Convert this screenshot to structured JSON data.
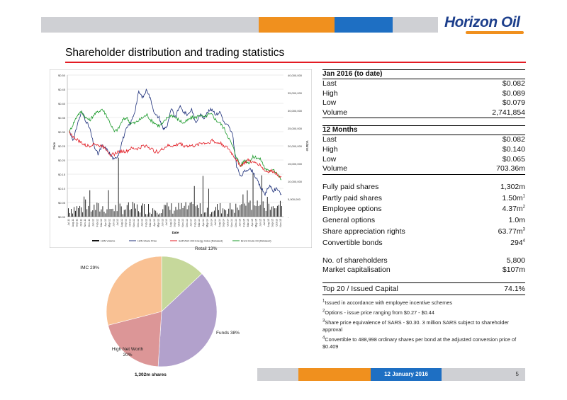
{
  "header": {
    "logo_text": "Horizon Oil",
    "colors": {
      "grey": "#cfd0d4",
      "orange": "#f0901e",
      "blue": "#1e6fc3",
      "red": "#e31b23",
      "navy": "#1d3f8c"
    }
  },
  "page": {
    "title": "Shareholder distribution and trading statistics",
    "date": "12 January 2016",
    "page_number": "5"
  },
  "stats": {
    "jan2016": {
      "heading": "Jan 2016 (to date)",
      "rows": [
        {
          "label": "Last",
          "value": "$0.082"
        },
        {
          "label": "High",
          "value": "$0.089"
        },
        {
          "label": "Low",
          "value": "$0.079"
        },
        {
          "label": "Volume",
          "value": "2,741,854"
        }
      ]
    },
    "months12": {
      "heading": "12 Months",
      "rows": [
        {
          "label": "Last",
          "value": "$0.082"
        },
        {
          "label": "High",
          "value": "$0.140"
        },
        {
          "label": "Low",
          "value": "$0.065"
        },
        {
          "label": "Volume",
          "value": "703.36m"
        }
      ]
    },
    "capital": [
      {
        "label": "Fully paid shares",
        "value": "1,302m",
        "sup": ""
      },
      {
        "label": "Partly paid shares",
        "value": "1.50m",
        "sup": "1"
      },
      {
        "label": "Employee options",
        "value": "4.37m",
        "sup": "2"
      },
      {
        "label": "General options",
        "value": "1.0m",
        "sup": ""
      },
      {
        "label": "Share appreciation rights",
        "value": "63.77m",
        "sup": "3"
      },
      {
        "label": "Convertible bonds",
        "value": "294",
        "sup": "4"
      }
    ],
    "holders": [
      {
        "label": "No. of shareholders",
        "value": "5,800"
      },
      {
        "label": "Market capitalisation",
        "value": "$107m"
      }
    ],
    "top20": {
      "label": "Top 20 / Issued Capital",
      "value": "74.1%"
    },
    "footnotes": [
      {
        "sup": "1",
        "text": "Issued in accordance with employee incentive schemes"
      },
      {
        "sup": "2",
        "text": "Options - issue price ranging from $0.27 - $0.44"
      },
      {
        "sup": "3",
        "text": "Share price equivalence of SARS - $0.30. 3 million SARS subject to shareholder approval"
      },
      {
        "sup": "4",
        "text": "Convertible to 488,998 ordinary shares per bond at the adjusted conversion price of $0.409"
      }
    ]
  },
  "chart_data": [
    {
      "type": "line",
      "y_left_label": "Price",
      "y_right_label": "Volume",
      "x_label": "Date",
      "y_left_ticks": [
        "$0.50",
        "$0.45",
        "$0.40",
        "$0.35",
        "$0.30",
        "$0.25",
        "$0.20",
        "$0.15",
        "$0.10",
        "$0.05",
        "$0.00"
      ],
      "y_right_ticks": [
        "40,000,000",
        "35,000,000",
        "30,000,000",
        "25,000,000",
        "20,000,000",
        "15,000,000",
        "10,000,000",
        "5,000,000",
        "-"
      ],
      "ylim": [
        0,
        0.5
      ],
      "x_ticks": [
        "Jul-11",
        "Aug-11",
        "Sep-11",
        "Oct-11",
        "Nov-11",
        "Dec-11",
        "Jan-12",
        "Feb-12",
        "Mar-12",
        "Apr-12",
        "May-12",
        "Jun-12",
        "Jul-12",
        "Aug-12",
        "Sep-12",
        "Oct-12",
        "Nov-12",
        "Dec-12",
        "Jan-13",
        "Feb-13",
        "Mar-13",
        "Apr-13",
        "May-13",
        "Jun-13",
        "Jul-13",
        "Aug-13",
        "Sep-13",
        "Oct-13",
        "Nov-13",
        "Dec-13",
        "Jan-14",
        "Feb-14",
        "Mar-14",
        "Apr-14",
        "May-14",
        "Jun-14",
        "Jul-14",
        "Aug-14",
        "Sep-14",
        "Oct-14",
        "Nov-14",
        "Dec-14",
        "Jan-15",
        "Feb-15",
        "Mar-15",
        "Apr-15",
        "May-15",
        "Jun-15",
        "Jul-15",
        "Aug-15",
        "Sep-15",
        "Oct-15",
        "Nov-15"
      ],
      "legend": [
        "HZN Volume",
        "HZN Share Price",
        "S&P/ASX 200 Energy Index (Rebased)",
        "Brent Crude Oil (Rebased)"
      ],
      "legend_position": "bottom",
      "series": [
        {
          "name": "HZN Share Price",
          "color": "#1d2f7a",
          "values": [
            0.3,
            0.27,
            0.33,
            0.37,
            0.34,
            0.31,
            0.25,
            0.22,
            0.25,
            0.24,
            0.22,
            0.2,
            0.22,
            0.27,
            0.31,
            0.33,
            0.37,
            0.44,
            0.42,
            0.45,
            0.41,
            0.36,
            0.35,
            0.31,
            0.32,
            0.38,
            0.35,
            0.39,
            0.37,
            0.36,
            0.38,
            0.33,
            0.36,
            0.35,
            0.37,
            0.38,
            0.36,
            0.37,
            0.33,
            0.32,
            0.29,
            0.18,
            0.14,
            0.16,
            0.17,
            0.16,
            0.13,
            0.1,
            0.08,
            0.11,
            0.09,
            0.1,
            0.08
          ]
        },
        {
          "name": "Brent Crude Oil (Rebased)",
          "color": "#1a9a2a",
          "values": [
            0.3,
            0.33,
            0.36,
            0.37,
            0.35,
            0.34,
            0.36,
            0.37,
            0.38,
            0.36,
            0.33,
            0.3,
            0.31,
            0.34,
            0.35,
            0.33,
            0.33,
            0.34,
            0.35,
            0.36,
            0.34,
            0.33,
            0.32,
            0.33,
            0.35,
            0.36,
            0.35,
            0.34,
            0.33,
            0.34,
            0.35,
            0.35,
            0.36,
            0.35,
            0.36,
            0.36,
            0.34,
            0.33,
            0.31,
            0.28,
            0.25,
            0.21,
            0.18,
            0.2,
            0.19,
            0.21,
            0.21,
            0.2,
            0.17,
            0.16,
            0.17,
            0.15,
            0.13
          ]
        },
        {
          "name": "S&P/ASX 200 Energy Index (Rebased)",
          "color": "#e31b23",
          "values": [
            0.3,
            0.28,
            0.27,
            0.26,
            0.25,
            0.25,
            0.26,
            0.25,
            0.25,
            0.24,
            0.22,
            0.22,
            0.23,
            0.23,
            0.23,
            0.24,
            0.24,
            0.24,
            0.25,
            0.25,
            0.24,
            0.23,
            0.23,
            0.24,
            0.25,
            0.25,
            0.25,
            0.26,
            0.25,
            0.25,
            0.25,
            0.25,
            0.26,
            0.26,
            0.26,
            0.27,
            0.26,
            0.26,
            0.25,
            0.24,
            0.22,
            0.2,
            0.18,
            0.19,
            0.2,
            0.19,
            0.19,
            0.18,
            0.16,
            0.16,
            0.16,
            0.15,
            0.14
          ]
        }
      ]
    },
    {
      "type": "pie",
      "title": "1,302m shares",
      "slices": [
        {
          "label": "Retail 13%",
          "value": 13,
          "color": "#c6d89b"
        },
        {
          "label": "Funds 38%",
          "value": 38,
          "color": "#b2a1cc"
        },
        {
          "label": "High Net Worth",
          "label2": "20%",
          "value": 20,
          "color": "#dc9697"
        },
        {
          "label": "IMC 29%",
          "value": 29,
          "color": "#f9c193"
        }
      ]
    }
  ]
}
